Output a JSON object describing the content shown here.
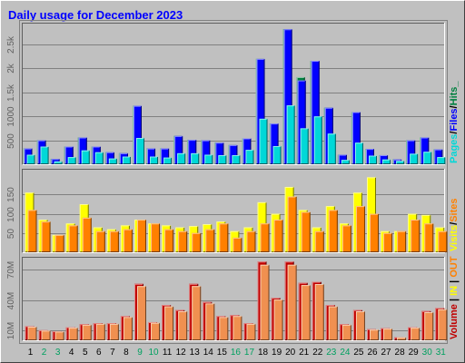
{
  "title": "Daily usage for December 2023",
  "colors": {
    "background": "#c0c0c0",
    "title": "#0000ff",
    "pages": "#00d8d8",
    "files": "#0000ff",
    "hits": "#008040",
    "visits": "#ffff00",
    "sites": "#ff8000",
    "kbytes": "#c00000",
    "weekend": "#00a060",
    "weekday": "#000000"
  },
  "chart_data": [
    {
      "type": "bar",
      "title": "Daily usage for December 2023",
      "categories": [
        "1",
        "2",
        "3",
        "4",
        "5",
        "6",
        "7",
        "8",
        "9",
        "10",
        "11",
        "12",
        "13",
        "14",
        "15",
        "16",
        "17",
        "18",
        "19",
        "20",
        "21",
        "22",
        "23",
        "24",
        "25",
        "26",
        "27",
        "28",
        "29",
        "30",
        "31"
      ],
      "weekend_days": [
        2,
        3,
        9,
        10,
        16,
        17,
        23,
        24,
        30,
        31
      ],
      "ylabel_parts": [
        "Pages",
        "Files",
        "Hits"
      ],
      "ylabel_separator": "/",
      "ylabel_suffix": "_",
      "ylim": [
        0,
        2900
      ],
      "ticks": [
        {
          "value": 500,
          "label": "500"
        },
        {
          "value": 1000,
          "label": "1000"
        },
        {
          "value": 1500,
          "label": "1.5k"
        },
        {
          "value": 2000,
          "label": "2k"
        },
        {
          "value": 2500,
          "label": "2.5k"
        }
      ],
      "series": [
        {
          "name": "Hits",
          "color_key": "hits",
          "values": [
            330,
            500,
            110,
            370,
            560,
            370,
            250,
            230,
            1220,
            330,
            330,
            590,
            510,
            500,
            450,
            400,
            540,
            2200,
            850,
            2820,
            1820,
            2160,
            1180,
            200,
            1090,
            320,
            190,
            100,
            500,
            560,
            310
          ]
        },
        {
          "name": "Files",
          "color_key": "files",
          "values": [
            330,
            500,
            110,
            370,
            560,
            370,
            250,
            230,
            1220,
            330,
            330,
            590,
            510,
            500,
            450,
            400,
            540,
            2200,
            850,
            2820,
            1750,
            2160,
            1180,
            200,
            1090,
            320,
            190,
            100,
            500,
            560,
            310
          ]
        },
        {
          "name": "Pages",
          "color_key": "pages",
          "values": [
            200,
            370,
            60,
            150,
            290,
            250,
            120,
            160,
            550,
            160,
            140,
            230,
            230,
            200,
            190,
            190,
            300,
            950,
            380,
            1230,
            750,
            1000,
            640,
            90,
            450,
            180,
            100,
            70,
            220,
            260,
            150
          ]
        }
      ]
    },
    {
      "type": "bar",
      "categories": [
        "1",
        "2",
        "3",
        "4",
        "5",
        "6",
        "7",
        "8",
        "9",
        "10",
        "11",
        "12",
        "13",
        "14",
        "15",
        "16",
        "17",
        "18",
        "19",
        "20",
        "21",
        "22",
        "23",
        "24",
        "25",
        "26",
        "27",
        "28",
        "29",
        "30",
        "31"
      ],
      "ylabel_parts": [
        "Visits",
        "Sites"
      ],
      "ylabel_separator": "/",
      "ylim": [
        0,
        210
      ],
      "ticks": [
        {
          "value": 50,
          "label": "50"
        },
        {
          "value": 100,
          "label": "100"
        },
        {
          "value": 150,
          "label": "150"
        }
      ],
      "series": [
        {
          "name": "Visits",
          "color_key": "visits",
          "values": [
            155,
            85,
            45,
            75,
            125,
            65,
            60,
            70,
            85,
            75,
            70,
            65,
            68,
            73,
            80,
            55,
            65,
            130,
            100,
            170,
            110,
            65,
            120,
            75,
            155,
            195,
            55,
            55,
            100,
            97,
            65
          ]
        },
        {
          "name": "Sites",
          "color_key": "sites",
          "values": [
            110,
            80,
            45,
            70,
            90,
            55,
            55,
            60,
            85,
            75,
            60,
            55,
            50,
            60,
            75,
            38,
            55,
            75,
            85,
            145,
            105,
            55,
            110,
            70,
            120,
            100,
            50,
            55,
            85,
            75,
            55
          ]
        }
      ]
    },
    {
      "type": "bar",
      "categories": [
        "1",
        "2",
        "3",
        "4",
        "5",
        "6",
        "7",
        "8",
        "9",
        "10",
        "11",
        "12",
        "13",
        "14",
        "15",
        "16",
        "17",
        "18",
        "19",
        "20",
        "21",
        "22",
        "23",
        "24",
        "25",
        "26",
        "27",
        "28",
        "29",
        "30",
        "31"
      ],
      "ylabel_parts": [
        "Volume",
        "IN",
        "OUT"
      ],
      "ylabel_separator": " | ",
      "ylim": [
        0,
        80
      ],
      "ticks": [
        {
          "value": 10,
          "label": "10M"
        },
        {
          "value": 40,
          "label": "40M"
        },
        {
          "value": 70,
          "label": "70M"
        }
      ],
      "series": [
        {
          "name": "Volume",
          "color_key": "kbytes",
          "values": [
            14,
            10,
            9,
            13,
            16,
            17,
            17,
            24,
            56,
            18,
            35,
            30,
            56,
            38,
            24,
            25,
            17,
            78,
            42,
            78,
            57,
            58,
            35,
            16,
            30,
            11,
            12,
            3,
            13,
            29,
            32
          ]
        }
      ]
    }
  ]
}
